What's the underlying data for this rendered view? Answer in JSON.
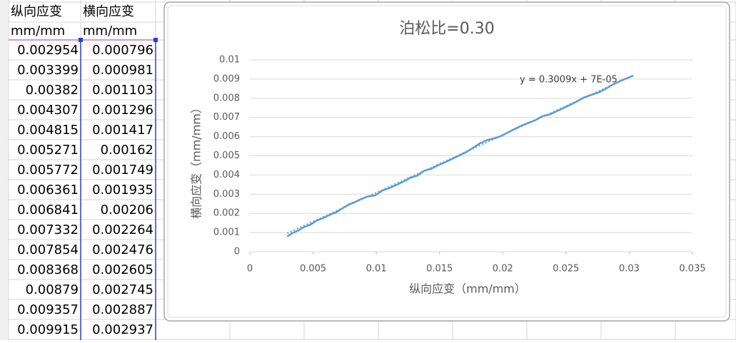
{
  "table": {
    "headers": [
      "纵向应变",
      "横向应变"
    ],
    "units": [
      "mm/mm",
      "mm/mm"
    ],
    "rows": [
      [
        0.002954,
        0.000796
      ],
      [
        0.003399,
        0.000981
      ],
      [
        0.00382,
        0.001103
      ],
      [
        0.004307,
        0.001296
      ],
      [
        0.004815,
        0.001417
      ],
      [
        0.005271,
        0.00162
      ],
      [
        0.005772,
        0.001749
      ],
      [
        0.006361,
        0.001935
      ],
      [
        0.006841,
        0.00206
      ],
      [
        0.007332,
        0.002264
      ],
      [
        0.007854,
        0.002476
      ],
      [
        0.008368,
        0.002605
      ],
      [
        0.00879,
        0.002745
      ],
      [
        0.009357,
        0.002887
      ],
      [
        0.009915,
        0.002937
      ]
    ]
  },
  "chart_data": {
    "type": "line",
    "title": "泊松比=0.30",
    "x_label": "纵向应变（mm/mm）",
    "y_label": "横向应变（mm/mm）",
    "color": "#5b9bd5",
    "x": [
      0.002954,
      0.003399,
      0.00382,
      0.004307,
      0.004815,
      0.005271,
      0.005772,
      0.006361,
      0.006841,
      0.007332,
      0.007854,
      0.008368,
      0.00879,
      0.009357,
      0.009915,
      0.010468,
      0.011021,
      0.011574,
      0.012126,
      0.012677,
      0.013229,
      0.013781,
      0.014332,
      0.014884,
      0.015435,
      0.015987,
      0.016538,
      0.01709,
      0.017641,
      0.018193,
      0.018744,
      0.019296,
      0.019847,
      0.020399,
      0.02095,
      0.021502,
      0.022053,
      0.022605,
      0.023156,
      0.023708,
      0.024259,
      0.024811,
      0.025362,
      0.025914,
      0.026465,
      0.027017,
      0.027568,
      0.02812,
      0.028671,
      0.029223,
      0.029774,
      0.030326
    ],
    "values": [
      0.000796,
      0.000981,
      0.001103,
      0.001296,
      0.001417,
      0.00162,
      0.001749,
      0.001935,
      0.00206,
      0.002264,
      0.002476,
      0.002605,
      0.002745,
      0.002887,
      0.002937,
      0.003189,
      0.003321,
      0.003476,
      0.003648,
      0.003852,
      0.003962,
      0.004221,
      0.004322,
      0.004508,
      0.004663,
      0.004837,
      0.005009,
      0.005187,
      0.005413,
      0.005652,
      0.005814,
      0.005906,
      0.006025,
      0.006211,
      0.006398,
      0.006581,
      0.006722,
      0.006867,
      0.007074,
      0.007152,
      0.007323,
      0.00749,
      0.007668,
      0.007852,
      0.008057,
      0.008178,
      0.008301,
      0.008486,
      0.008701,
      0.008882,
      0.009034,
      0.009178
    ],
    "trendline": {
      "label": "y = 0.3009x + 7E-05",
      "slope": 0.3009,
      "intercept": 7e-05
    },
    "xlim": [
      0,
      0.035
    ],
    "xticks": [
      0,
      0.005,
      0.01,
      0.015,
      0.02,
      0.025,
      0.03,
      0.035
    ],
    "ylim": [
      0,
      0.01
    ],
    "yticks": [
      0,
      0.001,
      0.002,
      0.003,
      0.004,
      0.005,
      0.006,
      0.007,
      0.008,
      0.009,
      0.01
    ],
    "grid": true
  }
}
